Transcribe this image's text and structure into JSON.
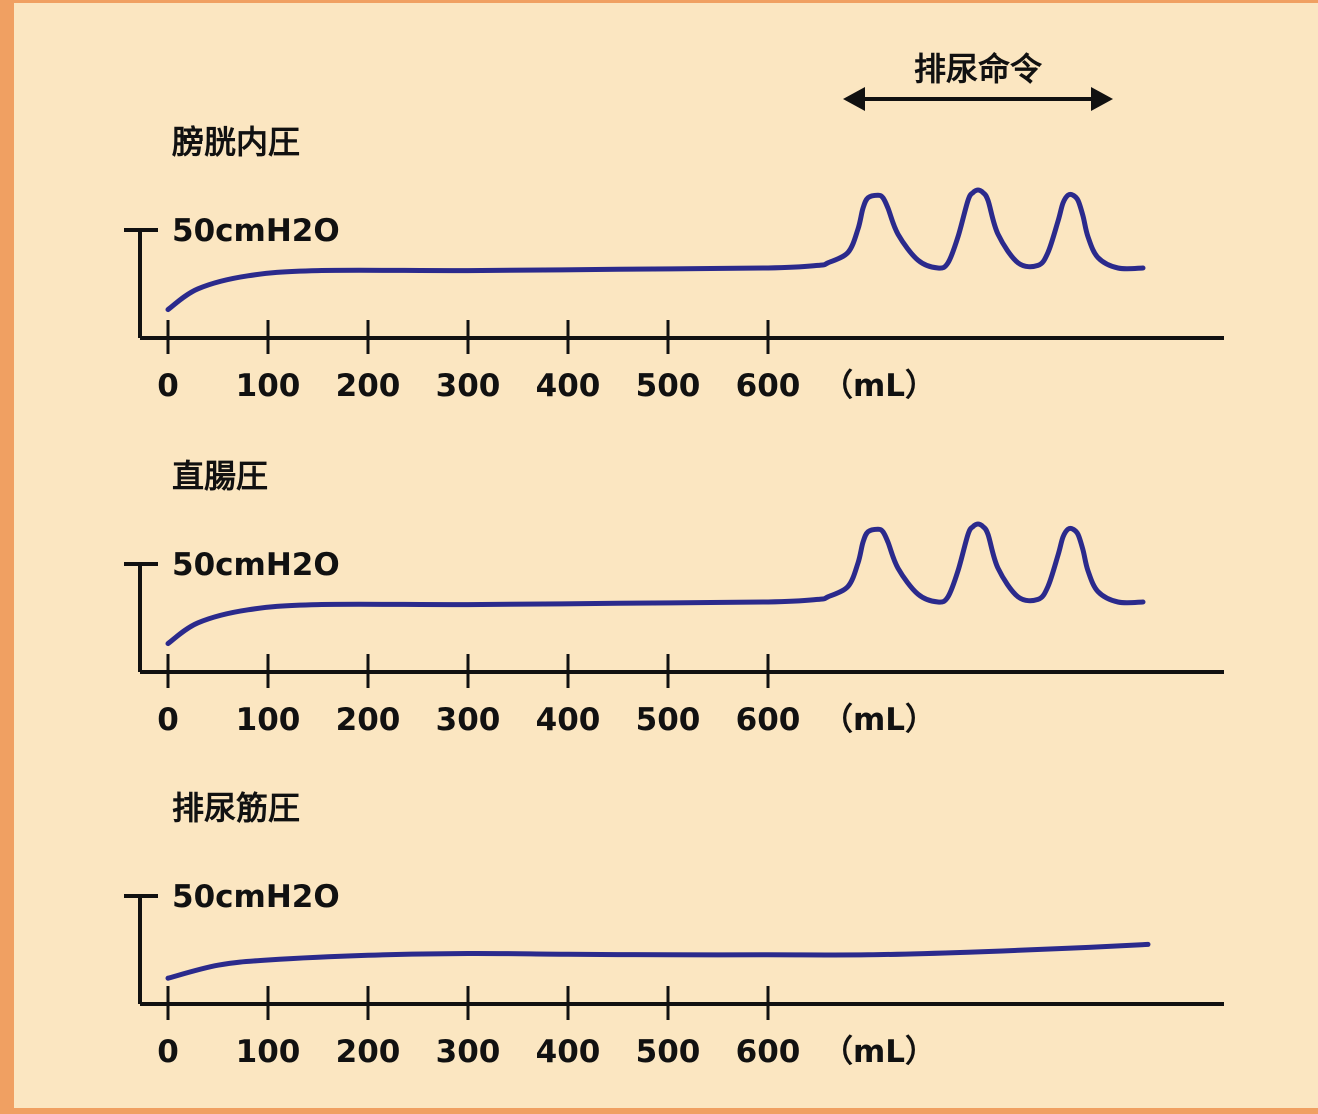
{
  "chart_data": [
    {
      "type": "line",
      "title": "膀胱内圧",
      "scale_label": "50cmH2O",
      "unit_label": "（mL）",
      "x_ticks": [
        "0",
        "100",
        "200",
        "300",
        "400",
        "500",
        "600"
      ],
      "xlim": [
        0,
        1000
      ],
      "ylim": [
        0,
        60
      ],
      "series": [
        {
          "x": [
            0,
            30,
            80,
            150,
            300,
            450,
            600,
            650,
            660,
            680,
            690,
            695,
            700,
            710,
            715,
            720,
            730,
            750,
            770,
            780,
            790,
            800,
            805,
            810,
            815,
            820,
            830,
            850,
            870,
            880,
            890,
            895,
            900,
            905,
            910,
            915,
            920,
            930,
            950,
            975
          ],
          "y": [
            4,
            12,
            17,
            19,
            19,
            19.5,
            20,
            21,
            22,
            26,
            35,
            43,
            47,
            48,
            47,
            43,
            33,
            23,
            20,
            22,
            32,
            46,
            49,
            50,
            49,
            46,
            33,
            22,
            21,
            26,
            38,
            45,
            48,
            48,
            46,
            40,
            32,
            24,
            20,
            20
          ]
        }
      ]
    },
    {
      "type": "line",
      "title": "直腸圧",
      "scale_label": "50cmH2O",
      "unit_label": "（mL）",
      "x_ticks": [
        "0",
        "100",
        "200",
        "300",
        "400",
        "500",
        "600"
      ],
      "xlim": [
        0,
        1000
      ],
      "ylim": [
        0,
        60
      ],
      "series": [
        {
          "x": [
            0,
            30,
            80,
            150,
            300,
            450,
            600,
            650,
            660,
            680,
            690,
            695,
            700,
            710,
            715,
            720,
            730,
            750,
            770,
            780,
            790,
            800,
            805,
            810,
            815,
            820,
            830,
            850,
            870,
            880,
            890,
            895,
            900,
            905,
            910,
            915,
            920,
            930,
            950,
            975
          ],
          "y": [
            4,
            12,
            17,
            19,
            19,
            19.5,
            20,
            21,
            22,
            26,
            35,
            43,
            47,
            48,
            47,
            43,
            33,
            23,
            20,
            22,
            32,
            46,
            49,
            50,
            49,
            46,
            33,
            22,
            21,
            26,
            38,
            45,
            48,
            48,
            46,
            40,
            32,
            24,
            20,
            20
          ]
        }
      ]
    },
    {
      "type": "line",
      "title": "排尿筋圧",
      "scale_label": "50cmH2O",
      "unit_label": "（mL）",
      "x_ticks": [
        "0",
        "100",
        "200",
        "300",
        "400",
        "500",
        "600"
      ],
      "xlim": [
        0,
        1000
      ],
      "ylim": [
        0,
        60
      ],
      "series": [
        {
          "x": [
            0,
            50,
            100,
            200,
            300,
            400,
            500,
            600,
            700,
            800,
            900,
            980
          ],
          "y": [
            3,
            8,
            10,
            11.8,
            12.5,
            12.2,
            12,
            12,
            12,
            13,
            14.5,
            16
          ]
        }
      ]
    }
  ],
  "annotation": {
    "label": "排尿命令",
    "x_range": [
      660,
      930
    ]
  }
}
